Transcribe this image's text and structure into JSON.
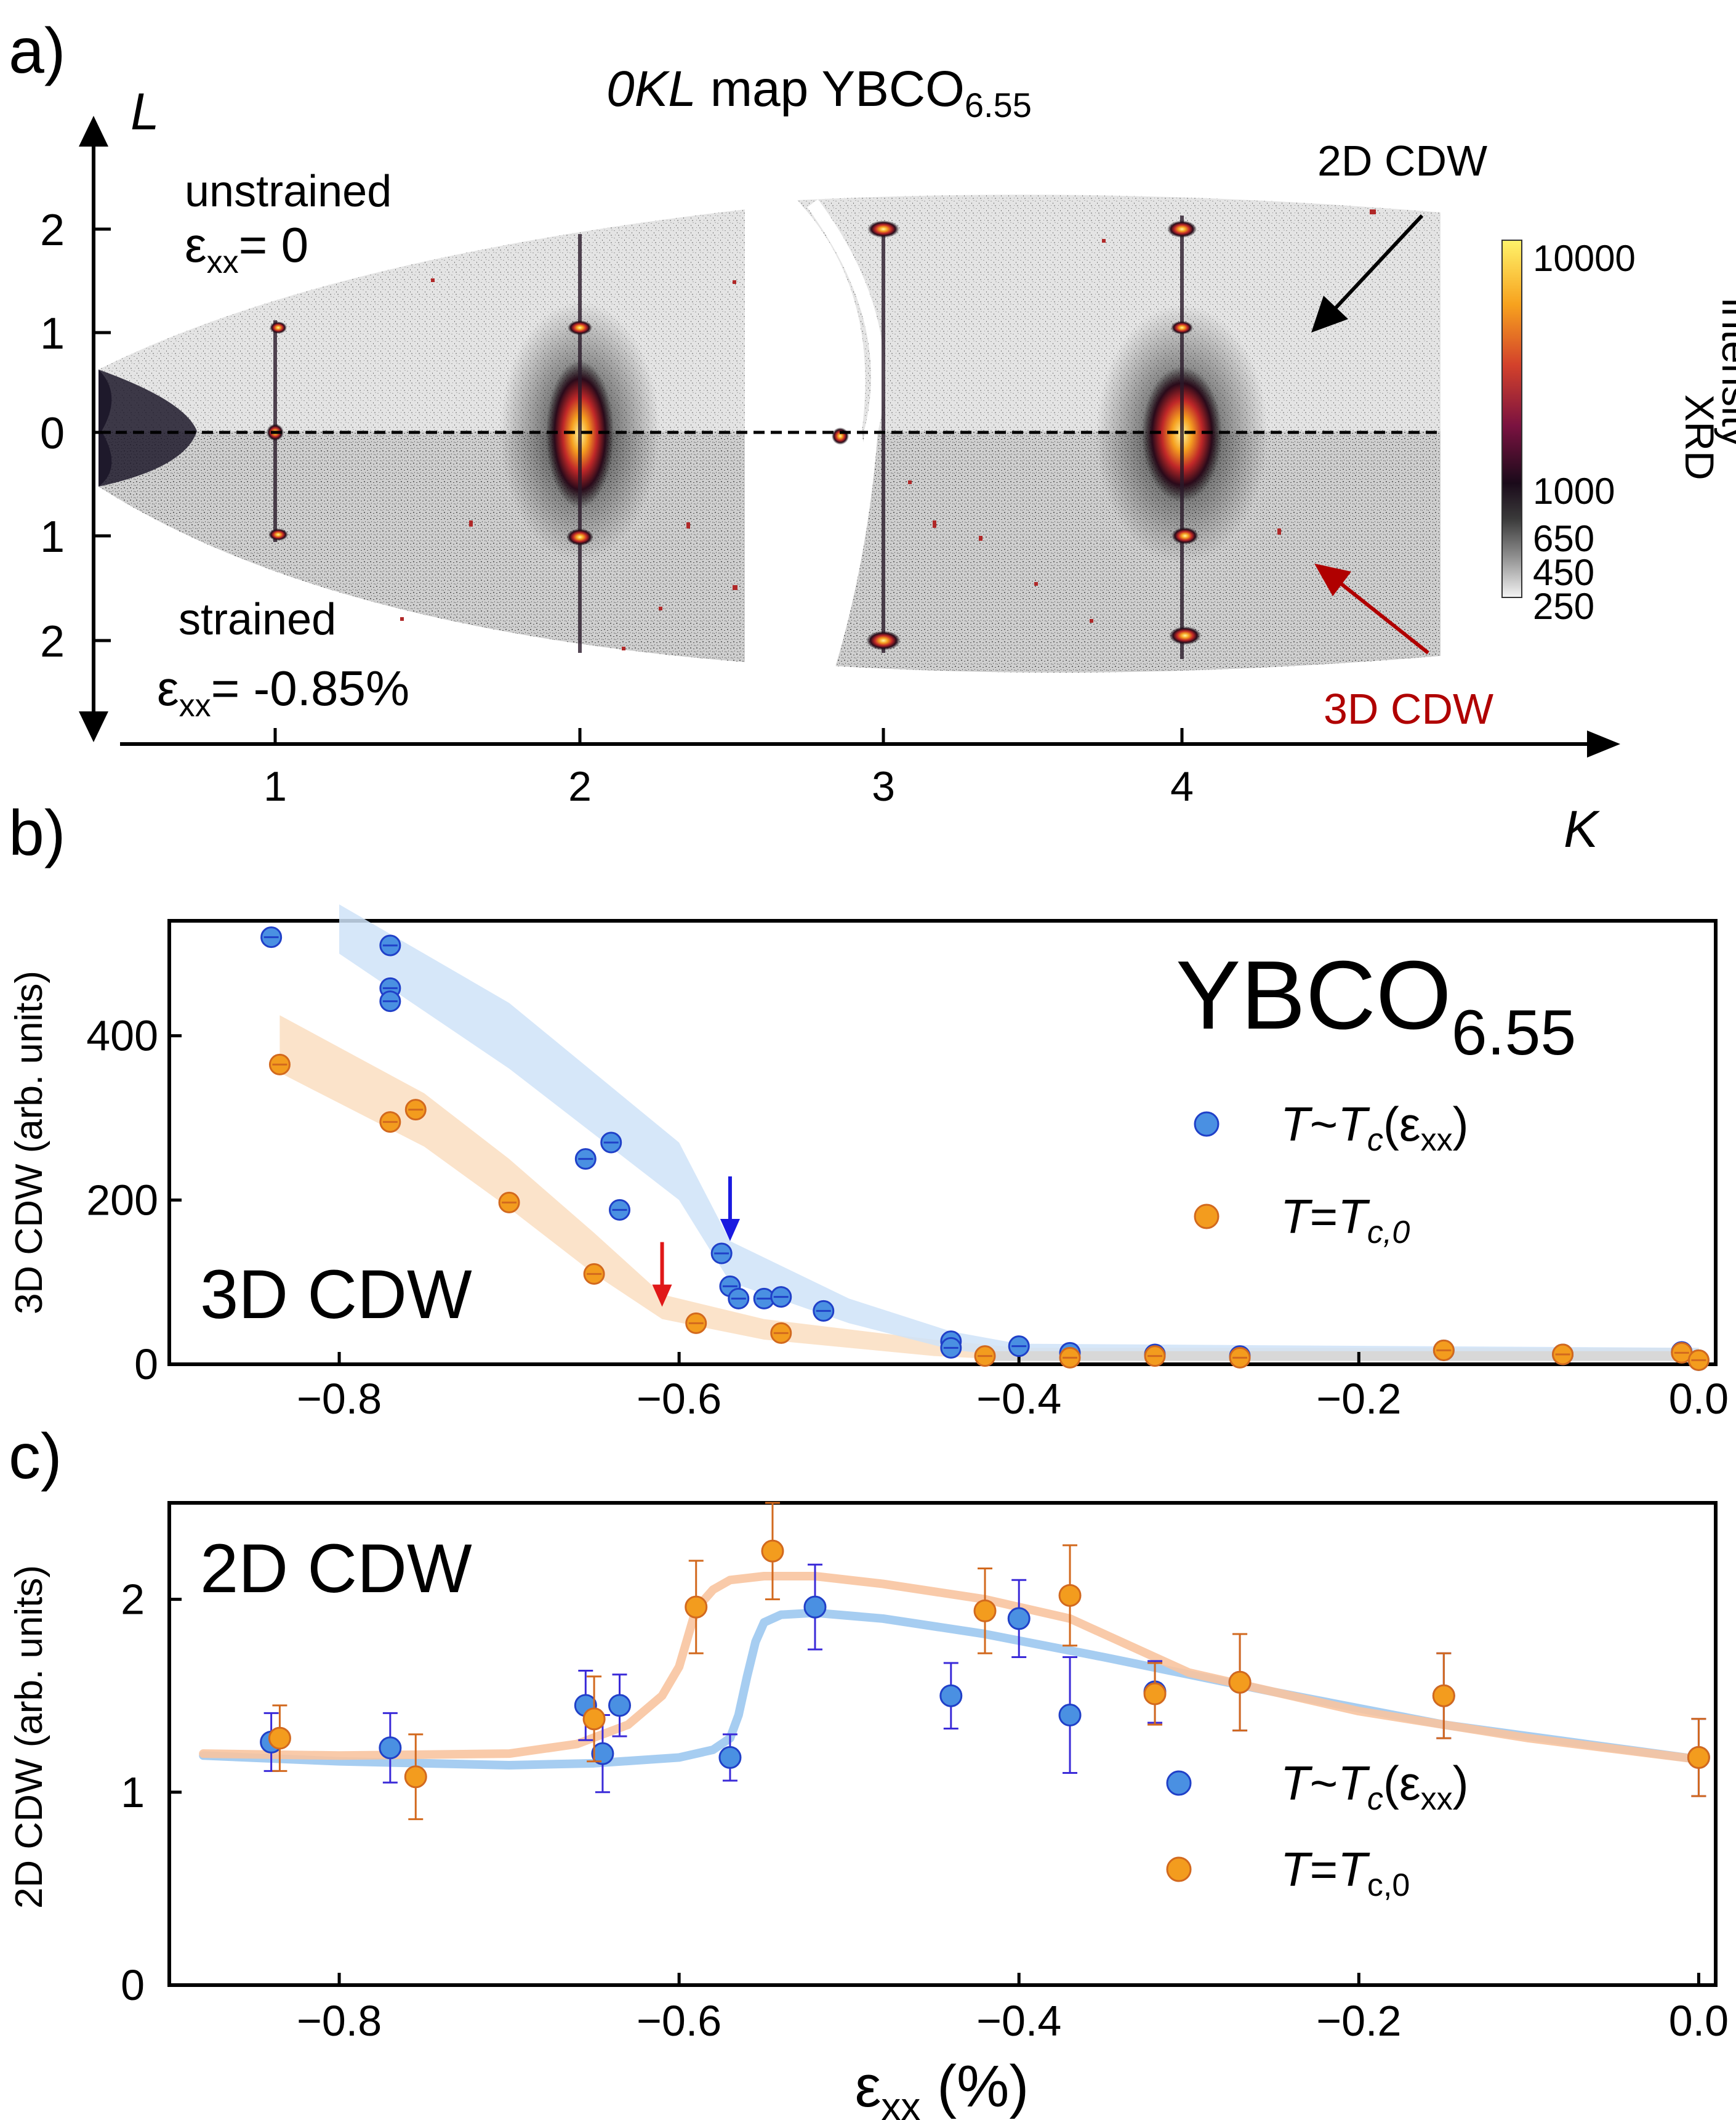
{
  "panels": {
    "a": "a)",
    "b": "b)",
    "c": "c)"
  },
  "map": {
    "title_prefix": "0KL",
    "title_mid": " map YBCO",
    "title_sub": "6.55",
    "axis_L": "L",
    "axis_K": "K",
    "k_ticks": [
      "1",
      "2",
      "3",
      "4"
    ],
    "l_ticks_upper": [
      "2",
      "1",
      "0"
    ],
    "l_ticks_lower": [
      "1",
      "2"
    ],
    "unstrained_label": "unstrained",
    "unstrained_eps_base": "ε",
    "unstrained_eps_sub": "xx",
    "unstrained_eps_value": "= 0",
    "strained_label": "strained",
    "strained_eps_base": "ε",
    "strained_eps_sub": "xx",
    "strained_eps_value": "= -0.85%",
    "arrow_2d_label": "2D CDW",
    "arrow_3d_label": "3D CDW",
    "colorbar_title": "XRD",
    "colorbar_subtitle": "intensity",
    "colorbar_ticks": [
      "10000",
      "1000",
      "650",
      "450",
      "250"
    ]
  },
  "colors": {
    "blue_marker": "#4a90e2",
    "blue_edge": "#2040c8",
    "orange_marker": "#f39c1e",
    "orange_edge": "#d2691e",
    "blue_band": "#cfe3f8",
    "orange_band": "#fbe0c4",
    "blue_curve": "#9cc8f0",
    "orange_curve": "#f8c4a0",
    "red_arrow": "#e01818",
    "blue_arrow": "#1a1ae0",
    "dark_red_text": "#b00000"
  },
  "chart_data": [
    {
      "type": "scatter",
      "panel": "b",
      "title": "YBCO6.55",
      "title_base": "YBCO",
      "title_sub": "6.55",
      "inset_label": "3D CDW",
      "ylabel": "3D CDW (arb. units)",
      "xlabel": "",
      "xlim": [
        -0.9,
        0.01
      ],
      "ylim": [
        0,
        540
      ],
      "xticks": [
        "−0.8",
        "−0.6",
        "−0.4",
        "−0.2",
        "0.0"
      ],
      "xtick_values": [
        -0.8,
        -0.6,
        -0.4,
        -0.2,
        0.0
      ],
      "yticks": [
        "0",
        "200",
        "400"
      ],
      "ytick_values": [
        0,
        200,
        400
      ],
      "legend": [
        {
          "name": "T~Tc(εxx)",
          "t": "T",
          "mid": "~",
          "t2": "T",
          "c": "c",
          "open": "(ε",
          "xx": "xx",
          "close": ")"
        },
        {
          "name": "T=Tc,0",
          "t": "T",
          "mid": "=",
          "t2": "T",
          "c": "c,0"
        }
      ],
      "series": [
        {
          "name": "T~Tc(εxx)",
          "color": "#4a90e2",
          "x": [
            -0.84,
            -0.77,
            -0.77,
            -0.77,
            -0.655,
            -0.64,
            -0.635,
            -0.575,
            -0.57,
            -0.565,
            -0.55,
            -0.54,
            -0.515,
            -0.44,
            -0.44,
            -0.4,
            -0.37,
            -0.32,
            -0.27,
            -0.15,
            -0.08,
            -0.01,
            0.0
          ],
          "y": [
            520,
            510,
            458,
            442,
            250,
            270,
            188,
            135,
            95,
            80,
            80,
            82,
            65,
            28,
            20,
            22,
            14,
            12,
            10,
            17,
            12,
            15,
            5
          ]
        },
        {
          "name": "T=Tc,0",
          "color": "#f39c1e",
          "x": [
            -0.835,
            -0.77,
            -0.755,
            -0.7,
            -0.65,
            -0.59,
            -0.54,
            -0.42,
            -0.37,
            -0.32,
            -0.27,
            -0.15,
            -0.08,
            -0.01,
            0.0
          ],
          "y": [
            365,
            295,
            310,
            197,
            110,
            50,
            38,
            10,
            8,
            10,
            8,
            17,
            12,
            14,
            5
          ]
        }
      ],
      "annotations": [
        {
          "label": "red-arrow",
          "x": -0.61,
          "y_tip": 70
        },
        {
          "label": "blue-arrow",
          "x": -0.57,
          "y_tip": 150
        }
      ]
    },
    {
      "type": "scatter",
      "panel": "c",
      "inset_label": "2D CDW",
      "ylabel": "2D CDW (arb. units)",
      "xlabel_base": "ε",
      "xlabel_sub": "xx",
      "xlabel_suffix": " (%)",
      "xlim": [
        -0.9,
        0.01
      ],
      "ylim": [
        0,
        2.5
      ],
      "xticks": [
        "−0.8",
        "−0.6",
        "−0.4",
        "−0.2",
        "0.0"
      ],
      "xtick_values": [
        -0.8,
        -0.6,
        -0.4,
        -0.2,
        0.0
      ],
      "yticks": [
        "0",
        "1",
        "2"
      ],
      "ytick_values": [
        0,
        1,
        2
      ],
      "legend": [
        {
          "name": "T~Tc(εxx)",
          "t": "T",
          "mid": "~",
          "t2": "T",
          "c": "c",
          "open": "(ε",
          "xx": "xx",
          "close": ")"
        },
        {
          "name": "T=Tc,0",
          "t": "T",
          "mid": "=",
          "t2": "T",
          "c": "c,0"
        }
      ],
      "series": [
        {
          "name": "T~Tc(εxx)",
          "color": "#4a90e2",
          "x": [
            -0.84,
            -0.77,
            -0.655,
            -0.645,
            -0.635,
            -0.57,
            -0.52,
            -0.44,
            -0.4,
            -0.37,
            -0.32,
            -0.27,
            -0.15,
            0.0
          ],
          "y": [
            1.26,
            1.23,
            1.45,
            1.2,
            1.45,
            1.18,
            1.96,
            1.5,
            1.9,
            1.4,
            1.52,
            1.57,
            1.5,
            1.18
          ],
          "err": [
            0.15,
            0.18,
            0.18,
            0.2,
            0.16,
            0.12,
            0.22,
            0.17,
            0.2,
            0.3,
            0.16,
            0.25,
            0.22,
            0.2
          ]
        },
        {
          "name": "T=Tc,0",
          "color": "#f39c1e",
          "x": [
            -0.835,
            -0.755,
            -0.65,
            -0.59,
            -0.545,
            -0.42,
            -0.37,
            -0.32,
            -0.27,
            -0.15,
            0.0
          ],
          "y": [
            1.28,
            1.08,
            1.38,
            1.96,
            2.25,
            1.94,
            2.02,
            1.51,
            1.57,
            1.5,
            1.18
          ],
          "err": [
            0.17,
            0.22,
            0.22,
            0.24,
            0.25,
            0.22,
            0.26,
            0.16,
            0.25,
            0.22,
            0.2
          ]
        }
      ],
      "fit_curves": [
        {
          "name": "T~Tc(εxx) fit",
          "x": [
            -0.88,
            -0.8,
            -0.7,
            -0.65,
            -0.6,
            -0.58,
            -0.57,
            -0.565,
            -0.56,
            -0.555,
            -0.55,
            -0.54,
            -0.52,
            -0.48,
            -0.42,
            -0.35,
            -0.25,
            -0.15,
            -0.05,
            0.0
          ],
          "y": [
            1.19,
            1.16,
            1.14,
            1.15,
            1.18,
            1.22,
            1.28,
            1.4,
            1.6,
            1.78,
            1.88,
            1.92,
            1.93,
            1.9,
            1.82,
            1.7,
            1.52,
            1.35,
            1.23,
            1.17
          ]
        },
        {
          "name": "T=Tc,0 fit",
          "x": [
            -0.88,
            -0.8,
            -0.7,
            -0.66,
            -0.63,
            -0.61,
            -0.6,
            -0.595,
            -0.59,
            -0.58,
            -0.57,
            -0.55,
            -0.52,
            -0.48,
            -0.42,
            -0.37,
            -0.3,
            -0.2,
            -0.1,
            0.0
          ],
          "y": [
            1.2,
            1.19,
            1.2,
            1.25,
            1.35,
            1.5,
            1.65,
            1.8,
            1.95,
            2.05,
            2.1,
            2.12,
            2.12,
            2.08,
            2.0,
            1.9,
            1.62,
            1.42,
            1.28,
            1.17
          ]
        }
      ]
    }
  ]
}
